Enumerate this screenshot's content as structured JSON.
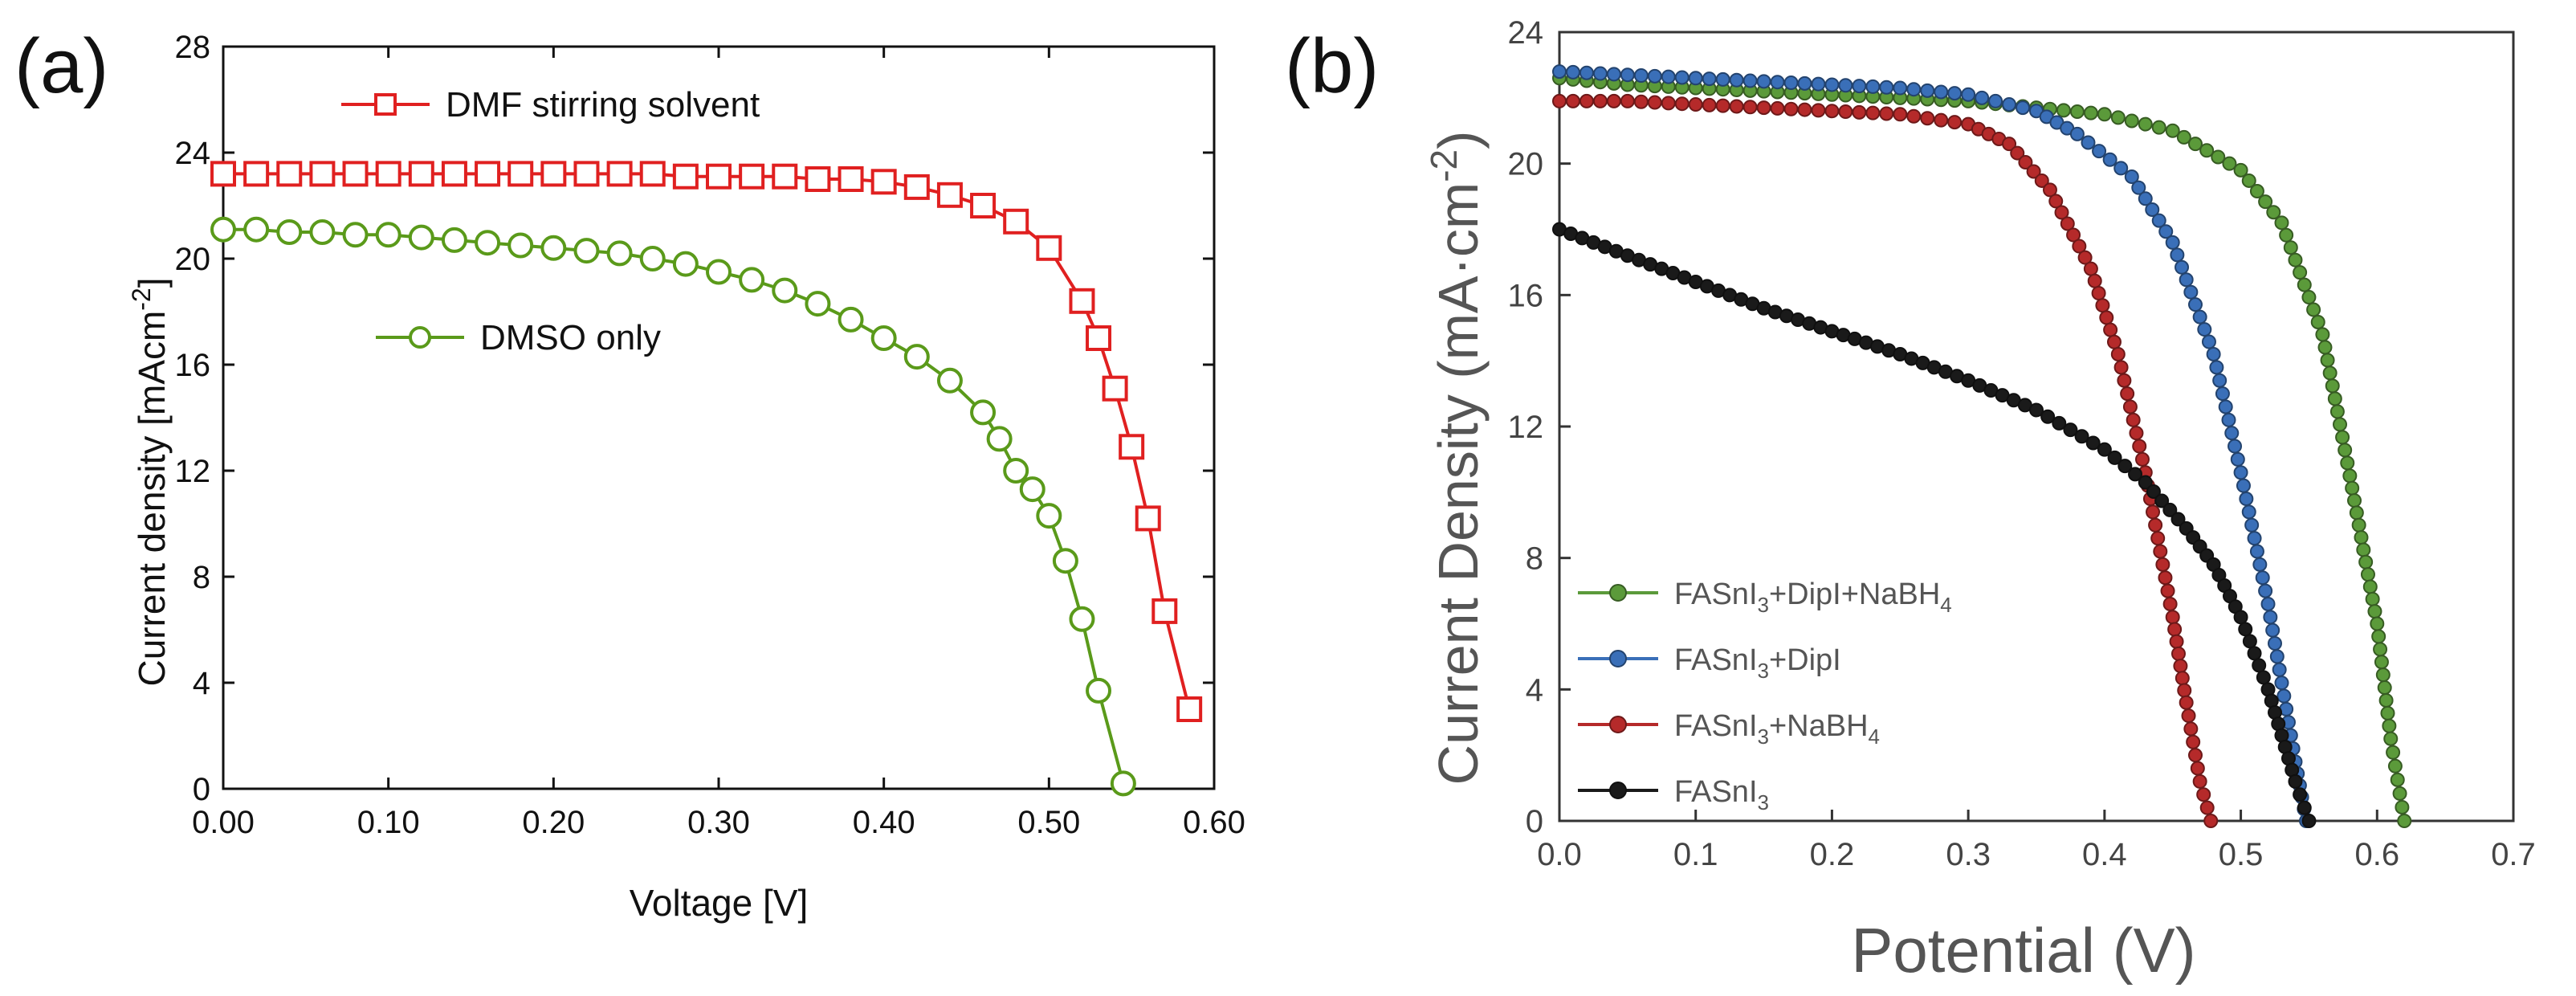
{
  "chart_data": [
    {
      "panel_label": "(a)",
      "type": "line",
      "title": "",
      "xlabel": "Voltage [V]",
      "ylabel": "Current density [mAcm",
      "ylabel_sup": "-2",
      "ylabel_close": "]",
      "xlim": [
        0.0,
        0.6
      ],
      "ylim": [
        0,
        28
      ],
      "xticks": [
        0.0,
        0.1,
        0.2,
        0.3,
        0.4,
        0.5,
        0.6
      ],
      "xtick_labels": [
        "0.00",
        "0.10",
        "0.20",
        "0.30",
        "0.40",
        "0.50",
        "0.60"
      ],
      "yticks": [
        0,
        4,
        8,
        12,
        16,
        20,
        24,
        28
      ],
      "ytick_labels": [
        "0",
        "4",
        "8",
        "12",
        "16",
        "20",
        "24",
        "28"
      ],
      "grid": false,
      "legend_placement": "inline",
      "series": [
        {
          "name": "DMF stirring solvent",
          "color": "#e02020",
          "marker": "square",
          "x": [
            0.0,
            0.02,
            0.04,
            0.06,
            0.08,
            0.1,
            0.12,
            0.14,
            0.16,
            0.18,
            0.2,
            0.22,
            0.24,
            0.26,
            0.28,
            0.3,
            0.32,
            0.34,
            0.36,
            0.38,
            0.4,
            0.42,
            0.44,
            0.46,
            0.48,
            0.5,
            0.52,
            0.53,
            0.54,
            0.55,
            0.56,
            0.57,
            0.585
          ],
          "y": [
            23.2,
            23.2,
            23.2,
            23.2,
            23.2,
            23.2,
            23.2,
            23.2,
            23.2,
            23.2,
            23.2,
            23.2,
            23.2,
            23.2,
            23.1,
            23.1,
            23.1,
            23.1,
            23.0,
            23.0,
            22.9,
            22.7,
            22.4,
            22.0,
            21.4,
            20.4,
            18.4,
            17.0,
            15.1,
            12.9,
            10.2,
            6.7,
            3.0
          ]
        },
        {
          "name": "DMSO only",
          "color": "#5a9a1a",
          "marker": "circle",
          "x": [
            0.0,
            0.02,
            0.04,
            0.06,
            0.08,
            0.1,
            0.12,
            0.14,
            0.16,
            0.18,
            0.2,
            0.22,
            0.24,
            0.26,
            0.28,
            0.3,
            0.32,
            0.34,
            0.36,
            0.38,
            0.4,
            0.42,
            0.44,
            0.46,
            0.47,
            0.48,
            0.49,
            0.5,
            0.51,
            0.52,
            0.53,
            0.545
          ],
          "y": [
            21.1,
            21.1,
            21.0,
            21.0,
            20.9,
            20.9,
            20.8,
            20.7,
            20.6,
            20.5,
            20.4,
            20.3,
            20.2,
            20.0,
            19.8,
            19.5,
            19.2,
            18.8,
            18.3,
            17.7,
            17.0,
            16.3,
            15.4,
            14.2,
            13.2,
            12.0,
            11.3,
            10.3,
            8.6,
            6.4,
            3.7,
            0.2
          ]
        }
      ]
    },
    {
      "panel_label": "(b)",
      "type": "line",
      "title": "",
      "xlabel": "Potential (V)",
      "ylabel": "Current Density (mA·cm",
      "ylabel_sup": "-2",
      "ylabel_close": ")",
      "xlim": [
        0.0,
        0.7
      ],
      "ylim": [
        0,
        24
      ],
      "xticks": [
        0.0,
        0.1,
        0.2,
        0.3,
        0.4,
        0.5,
        0.6,
        0.7
      ],
      "xtick_labels": [
        "0.0",
        "0.1",
        "0.2",
        "0.3",
        "0.4",
        "0.5",
        "0.6",
        "0.7"
      ],
      "yticks": [
        0,
        4,
        8,
        12,
        16,
        20,
        24
      ],
      "ytick_labels": [
        "0",
        "4",
        "8",
        "12",
        "16",
        "20",
        "24"
      ],
      "grid": false,
      "legend_placement": "bottom-left",
      "series": [
        {
          "name": "FASnI3+DipI+NaBH4",
          "label_parts": [
            [
              "FASnI",
              ""
            ],
            [
              "3",
              "sub"
            ],
            [
              "+DipI+NaBH",
              ""
            ],
            [
              "4",
              "sub"
            ]
          ],
          "color": "#5b9a3a",
          "marker": "circle",
          "x": [
            0.0,
            0.05,
            0.1,
            0.15,
            0.2,
            0.25,
            0.3,
            0.35,
            0.4,
            0.45,
            0.5,
            0.53,
            0.56,
            0.58,
            0.6,
            0.61,
            0.62
          ],
          "y": [
            22.6,
            22.4,
            22.3,
            22.2,
            22.1,
            22.0,
            21.9,
            21.7,
            21.5,
            21.0,
            19.8,
            18.2,
            14.8,
            10.5,
            6.0,
            2.5,
            0.0
          ]
        },
        {
          "name": "FASnI3+DipI",
          "label_parts": [
            [
              "FASnI",
              ""
            ],
            [
              "3",
              "sub"
            ],
            [
              "+DipI",
              ""
            ]
          ],
          "color": "#3a6fb8",
          "marker": "circle",
          "x": [
            0.0,
            0.05,
            0.1,
            0.15,
            0.2,
            0.25,
            0.3,
            0.35,
            0.38,
            0.42,
            0.45,
            0.48,
            0.5,
            0.52,
            0.53,
            0.54,
            0.548
          ],
          "y": [
            22.8,
            22.7,
            22.6,
            22.5,
            22.4,
            22.3,
            22.1,
            21.6,
            20.9,
            19.6,
            17.6,
            14.2,
            10.6,
            6.6,
            4.2,
            1.8,
            0.0
          ]
        },
        {
          "name": "FASnI3+NaBH4",
          "label_parts": [
            [
              "FASnI",
              ""
            ],
            [
              "3",
              "sub"
            ],
            [
              "+NaBH",
              ""
            ],
            [
              "4",
              "sub"
            ]
          ],
          "color": "#b52a2a",
          "marker": "circle",
          "x": [
            0.0,
            0.05,
            0.1,
            0.15,
            0.2,
            0.25,
            0.3,
            0.33,
            0.36,
            0.39,
            0.41,
            0.43,
            0.45,
            0.46,
            0.47,
            0.478
          ],
          "y": [
            21.9,
            21.9,
            21.8,
            21.7,
            21.6,
            21.5,
            21.2,
            20.6,
            19.2,
            16.8,
            14.2,
            10.6,
            6.2,
            3.6,
            1.2,
            0.0
          ]
        },
        {
          "name": "FASnI3",
          "label_parts": [
            [
              "FASnI",
              ""
            ],
            [
              "3",
              "sub"
            ]
          ],
          "color": "#1a1a1a",
          "marker": "circle",
          "x": [
            0.0,
            0.05,
            0.1,
            0.15,
            0.2,
            0.25,
            0.3,
            0.35,
            0.4,
            0.43,
            0.46,
            0.48,
            0.5,
            0.52,
            0.53,
            0.54,
            0.55
          ],
          "y": [
            18.0,
            17.2,
            16.4,
            15.6,
            14.9,
            14.2,
            13.4,
            12.5,
            11.3,
            10.3,
            8.9,
            7.8,
            6.2,
            4.0,
            2.6,
            1.2,
            0.0
          ]
        }
      ]
    }
  ]
}
